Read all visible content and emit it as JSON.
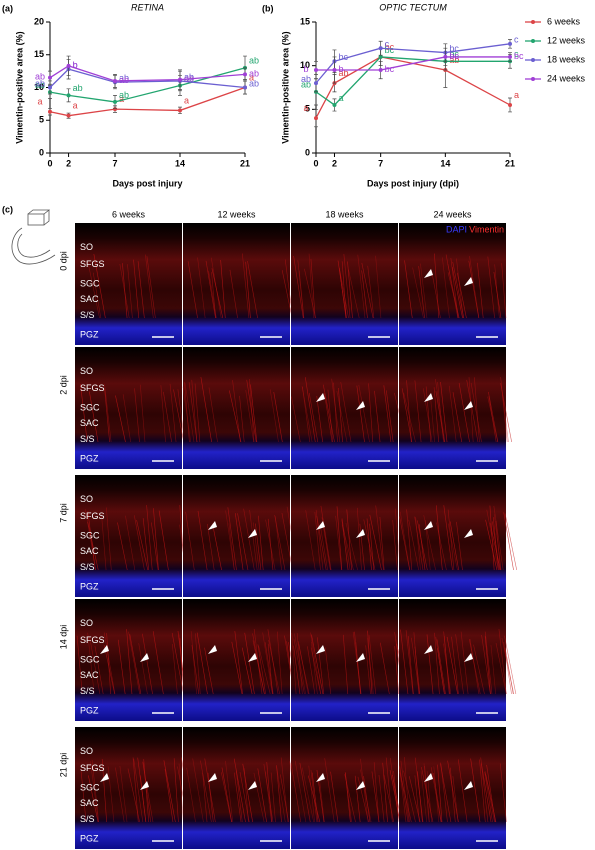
{
  "chart_data": [
    {
      "type": "line",
      "panel": "(a)",
      "title": "RETINA",
      "y_label": "Vimentin-positive area (%)",
      "x_label": "Days post injury",
      "x": [
        0,
        2,
        7,
        14,
        21
      ],
      "xlim": [
        0,
        21
      ],
      "xticks": [
        0,
        2,
        7,
        14,
        21
      ],
      "ylim": [
        0,
        20
      ],
      "yticks": [
        0,
        5,
        10,
        15,
        20
      ],
      "series": [
        {
          "color": "#dc4447",
          "values": [
            6.3,
            5.7,
            6.7,
            6.5,
            10
          ],
          "errors": [
            0.5,
            0.4,
            0.5,
            0.5,
            1
          ],
          "labels": [
            "a",
            "a",
            "a",
            "a",
            "a"
          ]
        },
        {
          "color": "#22a56f",
          "values": [
            9.3,
            8.8,
            7.8,
            10.3,
            13
          ],
          "errors": [
            1,
            1,
            1,
            1.5,
            1.8
          ],
          "labels": [
            "ab",
            "ab",
            "ab",
            "ab",
            "ab"
          ]
        },
        {
          "color": "#6b5fd1",
          "values": [
            10,
            12.8,
            10.8,
            11,
            10
          ],
          "errors": [
            1,
            1.5,
            1,
            1.5,
            1
          ],
          "labels": [
            "ab",
            "b",
            "ab",
            "ab",
            "ab"
          ]
        },
        {
          "color": "#a03fd6",
          "values": [
            11.5,
            13.3,
            11,
            11.2,
            12
          ],
          "errors": [
            1,
            1.5,
            1,
            1.5,
            1
          ],
          "labels": [
            "ab",
            "b",
            "ab",
            "ab",
            "ab"
          ]
        }
      ]
    },
    {
      "type": "line",
      "panel": "(b)",
      "title": "OPTIC TECTUM",
      "y_label": "Vimentin-positive area (%)",
      "x_label": "Days post injury (dpi)",
      "x": [
        0,
        2,
        7,
        14,
        21
      ],
      "xlim": [
        0,
        21
      ],
      "xticks": [
        0,
        2,
        7,
        14,
        21
      ],
      "ylim": [
        0,
        15
      ],
      "yticks": [
        0,
        5,
        10,
        15
      ],
      "legend": "right",
      "series": [
        {
          "name": "6 weeks",
          "color": "#dc4447",
          "values": [
            4,
            8,
            11,
            9.5,
            5.5
          ],
          "errors": [
            1,
            1,
            1,
            2,
            0.8
          ],
          "labels": [
            "a",
            "ab",
            "bc",
            "ab",
            "a"
          ]
        },
        {
          "name": "12 weeks",
          "color": "#22a56f",
          "values": [
            7,
            5.5,
            11,
            10.5,
            10.5
          ],
          "errors": [
            1.5,
            0.7,
            1,
            1,
            0.8
          ],
          "labels": [
            "ab",
            "a",
            "bc",
            "bc",
            "c"
          ]
        },
        {
          "name": "18 weeks",
          "color": "#6b5fd1",
          "values": [
            8,
            10.5,
            12,
            11.5,
            12.5
          ],
          "errors": [
            1,
            1.3,
            0.8,
            1,
            0.5
          ],
          "labels": [
            "ab",
            "bc",
            "c",
            "bc",
            "c"
          ]
        },
        {
          "name": "24 weeks",
          "color": "#a03fd6",
          "values": [
            9.5,
            9.5,
            9.5,
            11,
            11
          ],
          "errors": [
            1,
            1.5,
            1,
            1,
            0.5
          ],
          "labels": [
            "b",
            "b",
            "bc",
            "bc",
            "bc"
          ]
        }
      ]
    }
  ],
  "micrograph": {
    "panel": "(c)",
    "columns": [
      "6 weeks",
      "12 weeks",
      "18 weeks",
      "24 weeks"
    ],
    "rows": [
      "0 dpi",
      "2 dpi",
      "7 dpi",
      "14 dpi",
      "21 dpi"
    ],
    "layers": [
      "SO",
      "SFGS",
      "SGC",
      "SAC",
      "S/S",
      "PGZ"
    ],
    "stains": [
      "DAPI",
      "Vimentin"
    ]
  }
}
